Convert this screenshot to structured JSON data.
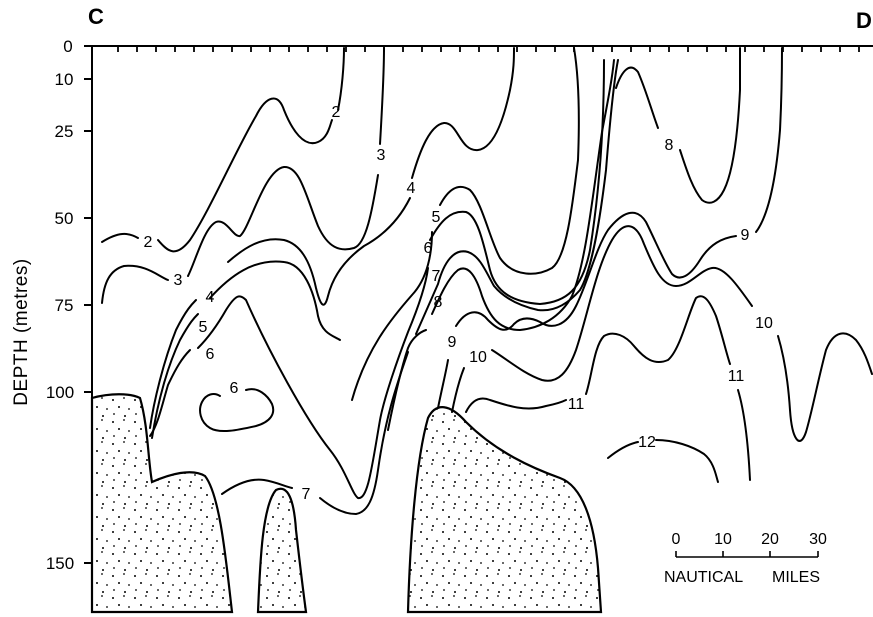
{
  "section": {
    "start_label": "C",
    "end_label": "D",
    "y_axis_label": "DEPTH (metres)",
    "depth_ticks": [
      "0",
      "10",
      "25",
      "50",
      "75",
      "100",
      "150"
    ]
  },
  "isolines": [
    "2",
    "2",
    "3",
    "3",
    "4",
    "4",
    "5",
    "5",
    "6",
    "6",
    "6",
    "7",
    "7",
    "8",
    "8",
    "9",
    "9",
    "10",
    "10",
    "11",
    "11",
    "12"
  ],
  "scale_bar": {
    "ticks": [
      "0",
      "10",
      "20",
      "30"
    ],
    "unit_left": "NAUTICAL",
    "unit_right": "MILES"
  }
}
